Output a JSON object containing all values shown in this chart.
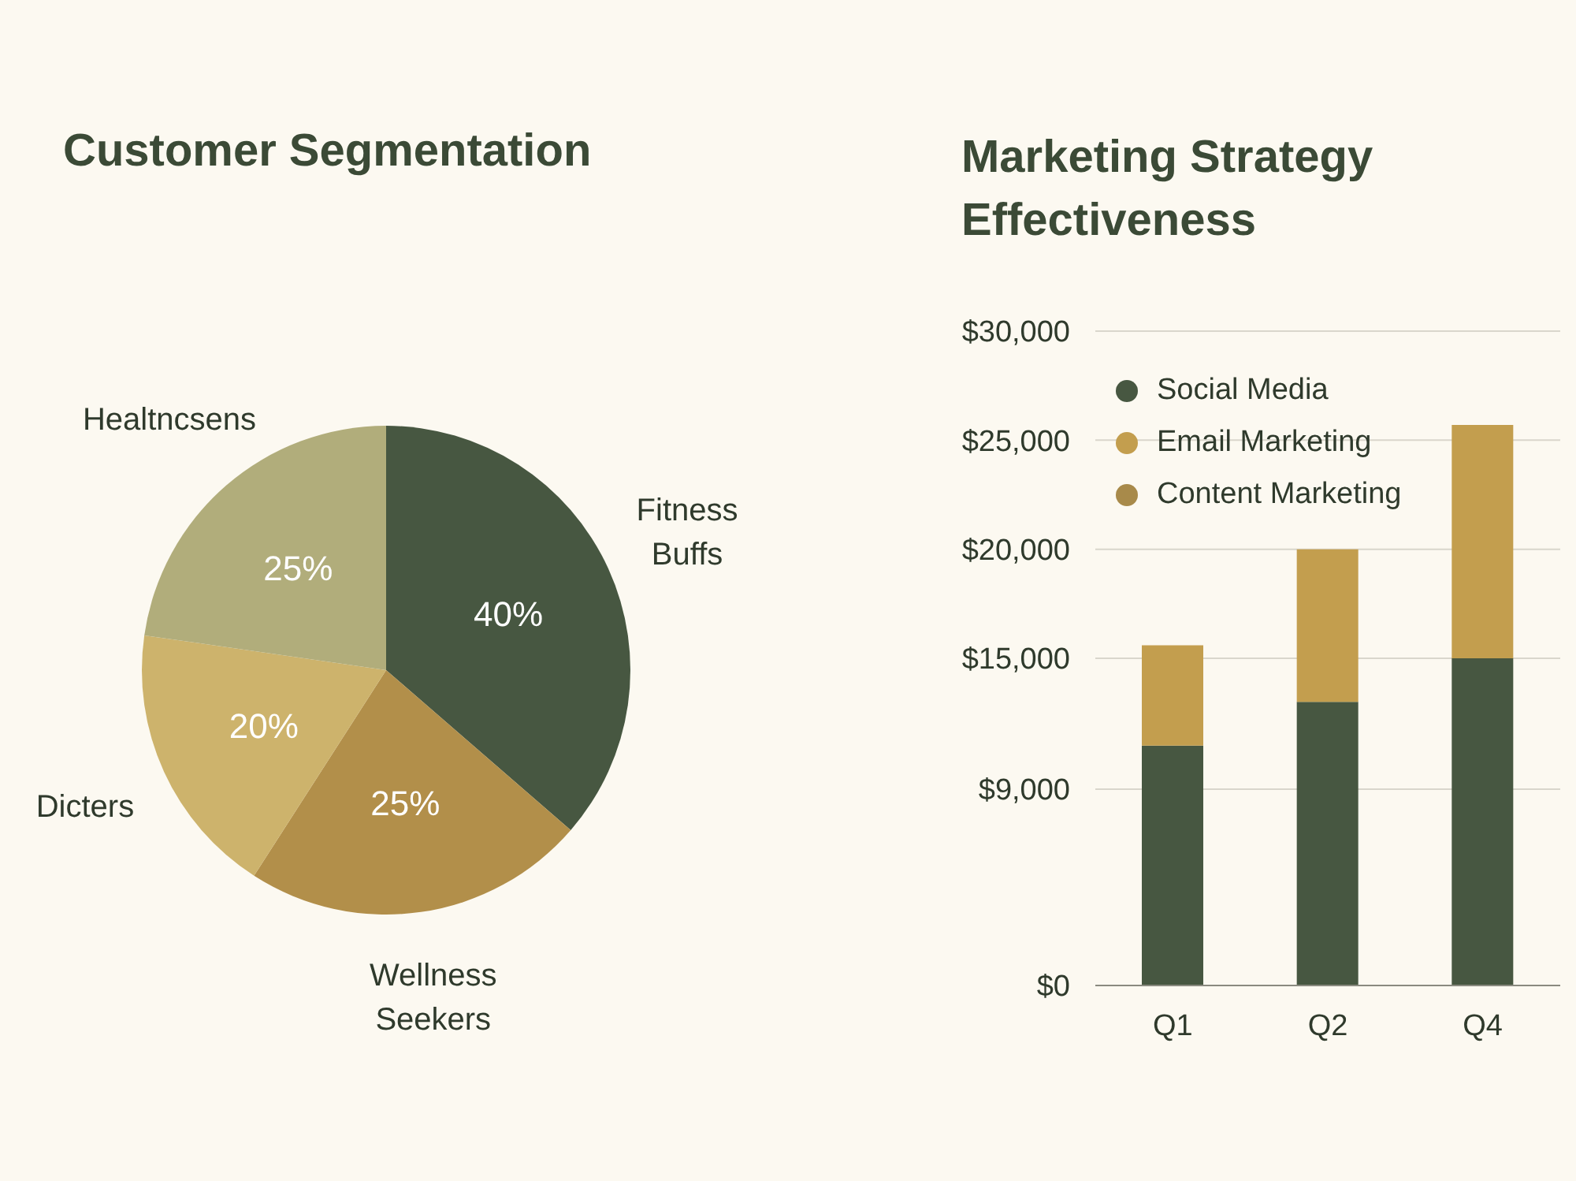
{
  "chart_data": [
    {
      "type": "pie",
      "title": "Customer Segmentation",
      "categories": [
        "Fitness Buffs",
        "Wellness Seekers",
        "Dicters",
        "Healtncsens"
      ],
      "values": [
        40,
        25,
        20,
        25
      ],
      "colors": [
        "#475741",
        "#b28f4a",
        "#cdb36c",
        "#b1ad7b"
      ],
      "value_labels": [
        "40%",
        "25%",
        "20%",
        "25%"
      ]
    },
    {
      "type": "bar",
      "title": "Marketing Strategy Effectiveness",
      "categories": [
        "Q1",
        "Q2",
        "Q4"
      ],
      "stacked": true,
      "series": [
        {
          "name": "Social Media",
          "color": "#475741",
          "values": [
            11000,
            13000,
            15000
          ]
        },
        {
          "name": "Email Marketing",
          "color": "#c39e4e",
          "values": [
            4600,
            7000,
            10700
          ]
        },
        {
          "name": "Content Marketing",
          "color": "#a88a4a",
          "values": [
            null,
            null,
            null
          ]
        }
      ],
      "ylim": [
        0,
        30000
      ],
      "yticks": [
        {
          "value": 0,
          "label": "$0"
        },
        {
          "value": 9000,
          "label": "$9,000"
        },
        {
          "value": 15000,
          "label": "$15,000"
        },
        {
          "value": 20000,
          "label": "$20,000"
        },
        {
          "value": 25000,
          "label": "$25,000"
        },
        {
          "value": 30000,
          "label": "$30,000"
        }
      ],
      "grid": "y",
      "legend": "top left"
    }
  ]
}
